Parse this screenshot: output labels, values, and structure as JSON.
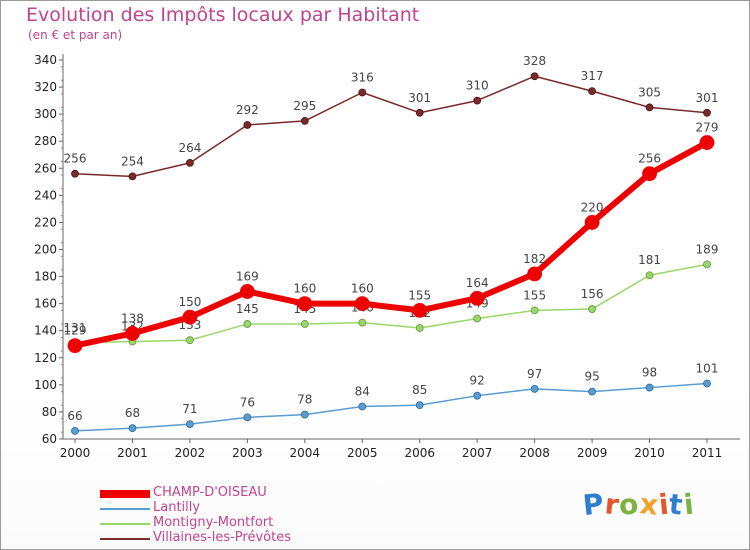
{
  "title": "Evolution des Impôts locaux par Habitant",
  "subtitle": "(en € et par an)",
  "logo": {
    "letters": [
      "P",
      "r",
      "o",
      "x",
      "i",
      "t",
      "i"
    ],
    "colors": [
      "#2f7fd0",
      "#e2552e",
      "#7cb342",
      "#f2a12c",
      "#e2552e",
      "#2f7fd0",
      "#7cb342"
    ]
  },
  "chart_data": {
    "type": "line",
    "categories": [
      "2000",
      "2001",
      "2002",
      "2003",
      "2004",
      "2005",
      "2006",
      "2007",
      "2008",
      "2009",
      "2010",
      "2011"
    ],
    "ylim": [
      60,
      340
    ],
    "y_ticks": [
      60,
      80,
      100,
      120,
      140,
      160,
      180,
      200,
      220,
      240,
      260,
      280,
      300,
      320,
      340
    ],
    "grid": false,
    "legend_position": "bottom-left",
    "series": [
      {
        "name": "Villaines-les-Prévôtes",
        "color": "#7a2a2a",
        "values": [
          256,
          254,
          264,
          292,
          295,
          316,
          301,
          310,
          328,
          317,
          305,
          301
        ]
      },
      {
        "name": "Montigny-Montfort",
        "color": "#9ad66c",
        "values": [
          131,
          132,
          133,
          145,
          145,
          146,
          142,
          149,
          155,
          156,
          181,
          189
        ]
      },
      {
        "name": "Lantilly",
        "color": "#5a9ccf",
        "values": [
          66,
          68,
          71,
          76,
          78,
          84,
          85,
          92,
          97,
          95,
          98,
          101
        ]
      },
      {
        "name": "CHAMP-D'OISEAU",
        "color": "#ee0000",
        "values": [
          129,
          138,
          150,
          169,
          160,
          160,
          155,
          164,
          182,
          220,
          256,
          279
        ]
      }
    ],
    "legend_order": [
      "CHAMP-D'OISEAU",
      "Lantilly",
      "Montigny-Montfort",
      "Villaines-les-Prévôtes"
    ]
  }
}
